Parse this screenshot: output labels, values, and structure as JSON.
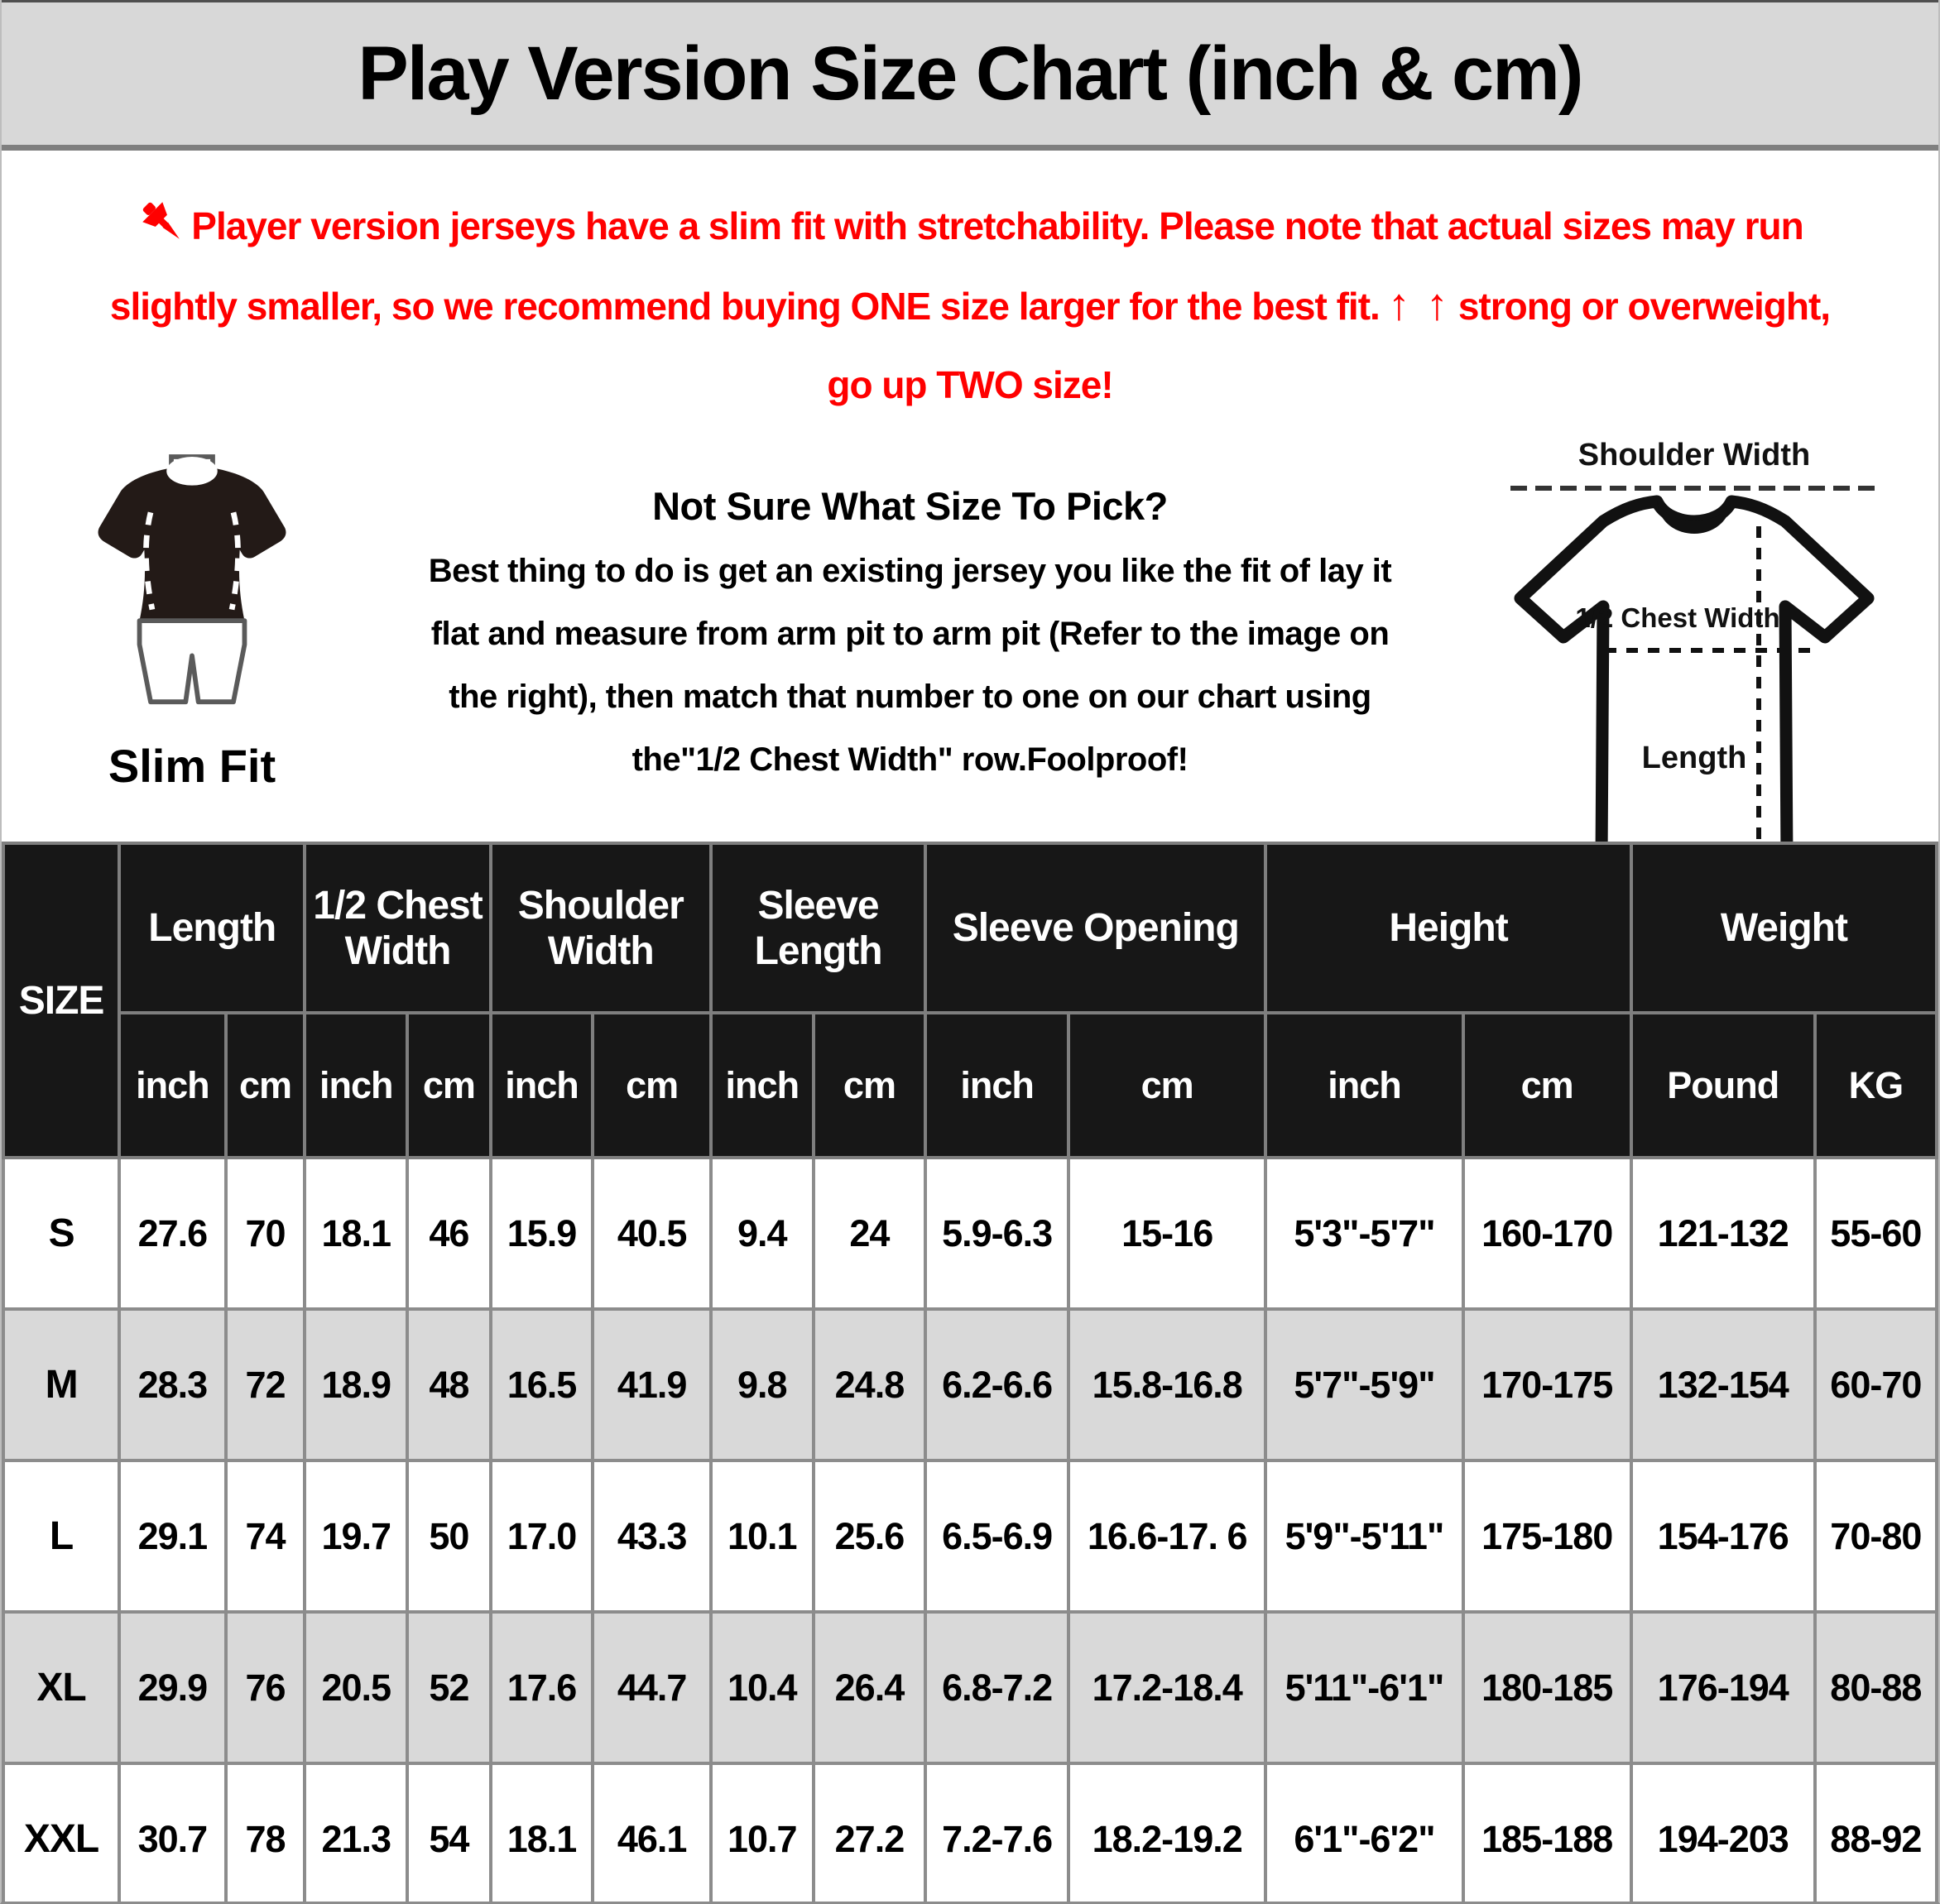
{
  "title": "Play Version Size Chart (inch & cm)",
  "colors": {
    "accent_red": "#ff0000",
    "band_gray": "#d8d8d8",
    "header_black": "#171717",
    "stripe_gray": "#d9d9d9"
  },
  "notice": {
    "lines": [
      "Player version jerseys have a slim fit with stretchability. Please note that actual sizes may run",
      "slightly smaller, so we recommend buying ONE size larger for the best fit.",
      "strong or overweight,",
      "go up TWO size!"
    ],
    "arrows": "↑ ↑"
  },
  "slim_fit_label": "Slim Fit",
  "guide": {
    "heading": "Not Sure What Size To Pick?",
    "lines": [
      "Best thing to do is get an existing jersey you like the fit of lay it",
      "flat and measure from arm pit to arm pit (Refer to the image on",
      "the right), then match that number to one on our chart using",
      "the\"1/2 Chest Width\" row.Foolproof!"
    ]
  },
  "diagram_labels": {
    "shoulder_width": "Shoulder Width",
    "half_chest_width": "1/2 Chest Width",
    "length": "Length"
  },
  "table": {
    "size_header": "SIZE",
    "groups": [
      {
        "label": "Length",
        "units": [
          "inch",
          "cm"
        ]
      },
      {
        "label": "1/2 Chest Width",
        "units": [
          "inch",
          "cm"
        ]
      },
      {
        "label": "Shoulder Width",
        "units": [
          "inch",
          "cm"
        ]
      },
      {
        "label": "Sleeve Length",
        "units": [
          "inch",
          "cm"
        ]
      },
      {
        "label": "Sleeve Opening",
        "units": [
          "inch",
          "cm"
        ]
      },
      {
        "label": "Height",
        "units": [
          "inch",
          "cm"
        ]
      },
      {
        "label": "Weight",
        "units": [
          "Pound",
          "KG"
        ]
      }
    ],
    "rows": [
      {
        "size": "S",
        "values": [
          "27.6",
          "70",
          "18.1",
          "46",
          "15.9",
          "40.5",
          "9.4",
          "24",
          "5.9-6.3",
          "15-16",
          "5'3\"-5'7\"",
          "160-170",
          "121-132",
          "55-60"
        ]
      },
      {
        "size": "M",
        "values": [
          "28.3",
          "72",
          "18.9",
          "48",
          "16.5",
          "41.9",
          "9.8",
          "24.8",
          "6.2-6.6",
          "15.8-16.8",
          "5'7\"-5'9\"",
          "170-175",
          "132-154",
          "60-70"
        ]
      },
      {
        "size": "L",
        "values": [
          "29.1",
          "74",
          "19.7",
          "50",
          "17.0",
          "43.3",
          "10.1",
          "25.6",
          "6.5-6.9",
          "16.6-17. 6",
          "5'9\"-5'11\"",
          "175-180",
          "154-176",
          "70-80"
        ]
      },
      {
        "size": "XL",
        "values": [
          "29.9",
          "76",
          "20.5",
          "52",
          "17.6",
          "44.7",
          "10.4",
          "26.4",
          "6.8-7.2",
          "17.2-18.4",
          "5'11\"-6'1\"",
          "180-185",
          "176-194",
          "80-88"
        ]
      },
      {
        "size": "XXL",
        "values": [
          "30.7",
          "78",
          "21.3",
          "54",
          "18.1",
          "46.1",
          "10.7",
          "27.2",
          "7.2-7.6",
          "18.2-19.2",
          "6'1\"-6'2\"",
          "185-188",
          "194-203",
          "88-92"
        ]
      }
    ]
  }
}
